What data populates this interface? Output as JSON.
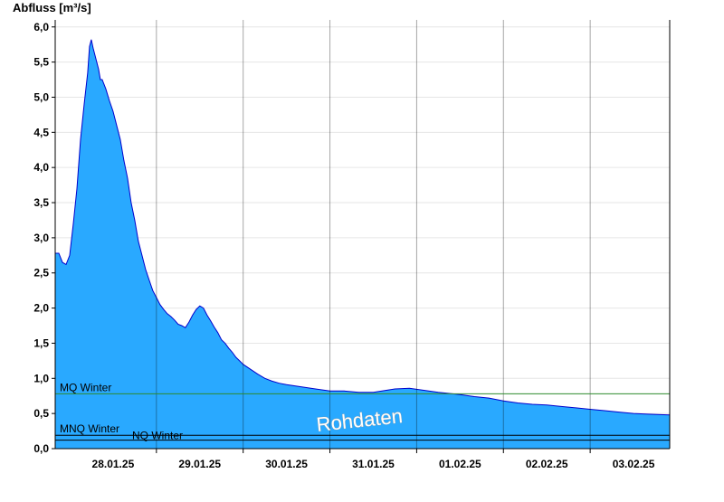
{
  "chart_data": {
    "type": "area",
    "ylabel": "Abfluss [m³/s]",
    "ylim": [
      0.0,
      6.1
    ],
    "yticks": [
      "0,0",
      "0,5",
      "1,0",
      "1,5",
      "2,0",
      "2,5",
      "3,0",
      "3,5",
      "4,0",
      "4,5",
      "5,0",
      "5,5",
      "6,0"
    ],
    "yticks_values": [
      0,
      0.5,
      1,
      1.5,
      2,
      2.5,
      3,
      3.5,
      4,
      4.5,
      5,
      5.5,
      6
    ],
    "xlim_hours": [
      -16,
      154
    ],
    "x_ticks": [
      {
        "label": "28.01.25",
        "hour": 0
      },
      {
        "label": "29.01.25",
        "hour": 24
      },
      {
        "label": "30.01.25",
        "hour": 48
      },
      {
        "label": "31.01.25",
        "hour": 72
      },
      {
        "label": "01.02.25",
        "hour": 96
      },
      {
        "label": "02.02.25",
        "hour": 120
      },
      {
        "label": "03.02.25",
        "hour": 144
      }
    ],
    "grid": true,
    "series": [
      {
        "name": "Rohdaten",
        "color": "#29a9ff",
        "line_color": "#0000cc",
        "points": [
          [
            -16,
            2.78
          ],
          [
            -15,
            2.78
          ],
          [
            -14,
            2.65
          ],
          [
            -13,
            2.62
          ],
          [
            -12,
            2.75
          ],
          [
            -11,
            3.2
          ],
          [
            -10,
            3.7
          ],
          [
            -9,
            4.4
          ],
          [
            -8,
            4.9
          ],
          [
            -7,
            5.35
          ],
          [
            -6.5,
            5.72
          ],
          [
            -6,
            5.82
          ],
          [
            -5.5,
            5.7
          ],
          [
            -5,
            5.6
          ],
          [
            -4,
            5.4
          ],
          [
            -3.5,
            5.25
          ],
          [
            -3,
            5.25
          ],
          [
            -2,
            5.12
          ],
          [
            -1,
            4.95
          ],
          [
            0,
            4.8
          ],
          [
            1,
            4.6
          ],
          [
            2,
            4.4
          ],
          [
            3,
            4.1
          ],
          [
            4,
            3.85
          ],
          [
            5,
            3.5
          ],
          [
            6,
            3.25
          ],
          [
            7,
            2.95
          ],
          [
            8,
            2.75
          ],
          [
            9,
            2.55
          ],
          [
            10,
            2.4
          ],
          [
            11,
            2.25
          ],
          [
            12,
            2.15
          ],
          [
            13,
            2.05
          ],
          [
            14,
            1.98
          ],
          [
            15,
            1.92
          ],
          [
            16,
            1.88
          ],
          [
            17,
            1.83
          ],
          [
            18,
            1.77
          ],
          [
            19,
            1.75
          ],
          [
            20,
            1.72
          ],
          [
            21,
            1.8
          ],
          [
            22,
            1.9
          ],
          [
            23,
            1.98
          ],
          [
            24,
            2.03
          ],
          [
            25,
            2.0
          ],
          [
            26,
            1.9
          ],
          [
            27,
            1.82
          ],
          [
            28,
            1.73
          ],
          [
            29,
            1.65
          ],
          [
            30,
            1.55
          ],
          [
            31,
            1.5
          ],
          [
            32,
            1.43
          ],
          [
            33,
            1.37
          ],
          [
            34,
            1.3
          ],
          [
            35,
            1.25
          ],
          [
            36,
            1.2
          ],
          [
            38,
            1.13
          ],
          [
            40,
            1.06
          ],
          [
            42,
            1.0
          ],
          [
            44,
            0.96
          ],
          [
            46,
            0.93
          ],
          [
            48,
            0.91
          ],
          [
            52,
            0.88
          ],
          [
            56,
            0.85
          ],
          [
            60,
            0.82
          ],
          [
            64,
            0.82
          ],
          [
            68,
            0.8
          ],
          [
            72,
            0.8
          ],
          [
            78,
            0.85
          ],
          [
            82,
            0.86
          ],
          [
            86,
            0.83
          ],
          [
            90,
            0.8
          ],
          [
            94,
            0.78
          ],
          [
            96,
            0.77
          ],
          [
            100,
            0.74
          ],
          [
            104,
            0.72
          ],
          [
            108,
            0.68
          ],
          [
            112,
            0.65
          ],
          [
            116,
            0.63
          ],
          [
            120,
            0.62
          ],
          [
            124,
            0.6
          ],
          [
            128,
            0.58
          ],
          [
            132,
            0.56
          ],
          [
            136,
            0.54
          ],
          [
            140,
            0.52
          ],
          [
            144,
            0.5
          ],
          [
            148,
            0.49
          ],
          [
            154,
            0.48
          ]
        ]
      }
    ],
    "reference_lines": [
      {
        "label": "MQ Winter",
        "value": 0.78,
        "color": "#2e8b2e"
      },
      {
        "label": "MNQ Winter",
        "value": 0.19,
        "color": "#000000"
      },
      {
        "label": "NQ Winter",
        "value": 0.12,
        "color": "#000000"
      }
    ],
    "watermark": "Rohdaten"
  }
}
